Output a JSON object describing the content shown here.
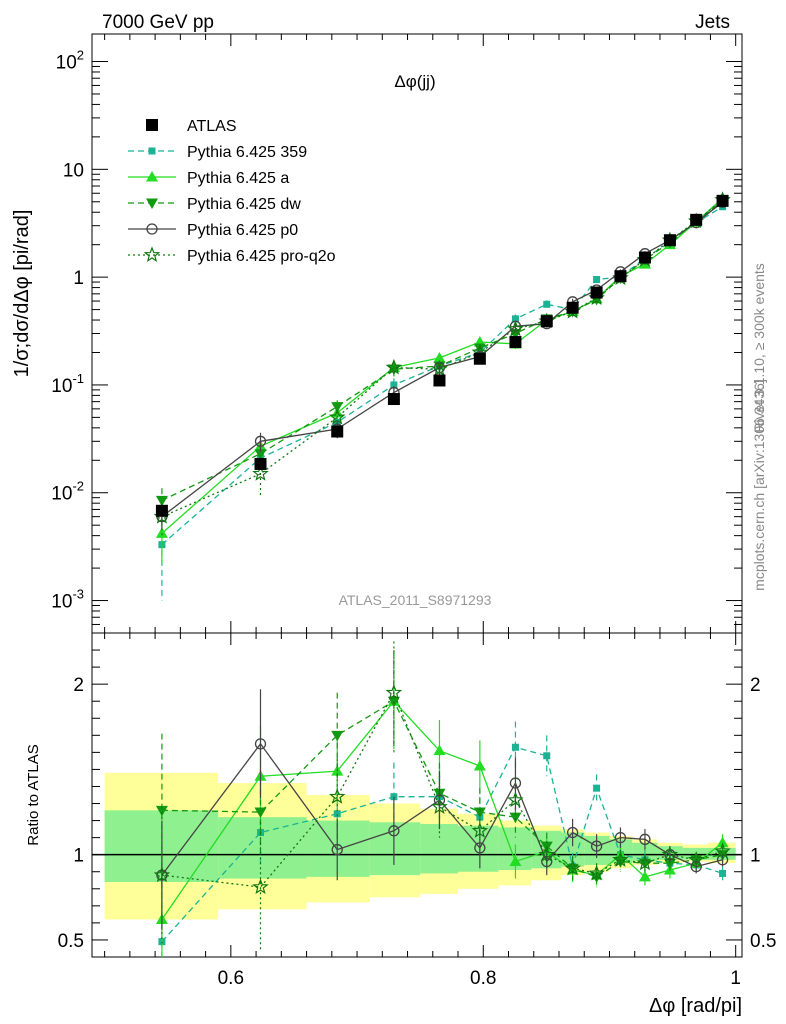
{
  "header": {
    "left": "7000 GeV pp",
    "right": "Jets"
  },
  "side_labels": {
    "rivet": "Rivet 3.1.10, ≥ 300k events",
    "mcplots": "mcplots.cern.ch [arXiv:1306.3436]"
  },
  "analysis_id": "ATLAS_2011_S8971293",
  "chart_data": [
    {
      "type": "line",
      "panel": "main",
      "title": "Δφ(jj)",
      "ylabel": "1/σ;dσ/dΔφ [pi/rad]",
      "xlim": [
        0.49,
        1.005
      ],
      "ylim": [
        0.0005,
        180
      ],
      "yscale": "log",
      "ytick_labels": [
        "10^-3",
        "10^-2",
        "10^-1",
        "1",
        "10",
        "10^2"
      ],
      "ytick_values": [
        0.001,
        0.01,
        0.1,
        1,
        10,
        100
      ],
      "legend_position": "top-left",
      "x": [
        0.5454,
        0.6235,
        0.6843,
        0.7292,
        0.7653,
        0.7973,
        0.8255,
        0.8503,
        0.8708,
        0.8898,
        0.9087,
        0.9281,
        0.9479,
        0.9687,
        0.9896
      ],
      "series": [
        {
          "name": "ATLAS",
          "style": "data",
          "color": "#000000",
          "marker": "square",
          "values": [
            0.0068,
            0.0185,
            0.037,
            0.074,
            0.11,
            0.175,
            0.25,
            0.39,
            0.52,
            0.72,
            1.02,
            1.52,
            2.2,
            3.4,
            5.1
          ],
          "errors": [
            0.0006,
            0.0015,
            0.003,
            0.005,
            0.008,
            0.012,
            0.015,
            0.03,
            0.035,
            0.045,
            0.06,
            0.09,
            0.12,
            0.18,
            0.3
          ]
        },
        {
          "name": "Pythia 6.425 359",
          "style": "dashed",
          "color": "#1ab394",
          "marker": "small-square",
          "values": [
            0.0033,
            0.021,
            0.045,
            0.1,
            0.15,
            0.2,
            0.41,
            0.56,
            0.5,
            0.95,
            1.0,
            1.5,
            2.1,
            3.2,
            4.5
          ],
          "errors": [
            0.0023,
            0.004,
            0.007,
            0.015,
            0.02,
            0.02,
            0.04,
            0.05,
            0.04,
            0.06,
            0.06,
            0.09,
            0.1,
            0.15,
            0.2
          ]
        },
        {
          "name": "Pythia 6.425 a",
          "style": "solid",
          "color": "#22dd22",
          "marker": "triangle-up",
          "values": [
            0.0042,
            0.027,
            0.055,
            0.145,
            0.178,
            0.25,
            0.24,
            0.4,
            0.48,
            0.63,
            1.02,
            1.32,
            2.0,
            3.25,
            5.4
          ],
          "errors": [
            0.002,
            0.005,
            0.008,
            0.02,
            0.02,
            0.025,
            0.025,
            0.03,
            0.035,
            0.04,
            0.06,
            0.08,
            0.1,
            0.16,
            0.25
          ]
        },
        {
          "name": "Pythia 6.425 dw",
          "style": "dashed",
          "color": "#119911",
          "marker": "triangle-down",
          "values": [
            0.0085,
            0.023,
            0.063,
            0.14,
            0.15,
            0.22,
            0.3,
            0.41,
            0.48,
            0.62,
            0.98,
            1.45,
            2.1,
            3.3,
            5.1
          ],
          "errors": [
            0.0025,
            0.005,
            0.009,
            0.02,
            0.02,
            0.02,
            0.03,
            0.03,
            0.035,
            0.04,
            0.06,
            0.08,
            0.1,
            0.16,
            0.25
          ]
        },
        {
          "name": "Pythia 6.425 p0",
          "style": "solid",
          "color": "#444444",
          "marker": "open-circle",
          "values": [
            0.006,
            0.03,
            0.039,
            0.085,
            0.145,
            0.183,
            0.35,
            0.37,
            0.59,
            0.76,
            1.12,
            1.65,
            2.2,
            3.2,
            4.95
          ],
          "errors": [
            0.0015,
            0.006,
            0.007,
            0.012,
            0.018,
            0.02,
            0.03,
            0.03,
            0.04,
            0.05,
            0.06,
            0.09,
            0.1,
            0.15,
            0.2
          ]
        },
        {
          "name": "Pythia 6.425 pro-q2o",
          "style": "dotted",
          "color": "#117711",
          "marker": "open-star",
          "values": [
            0.006,
            0.015,
            0.05,
            0.145,
            0.14,
            0.2,
            0.33,
            0.39,
            0.48,
            0.64,
            0.98,
            1.45,
            2.2,
            3.3,
            5.2
          ],
          "errors": [
            0.002,
            0.006,
            0.008,
            0.02,
            0.018,
            0.02,
            0.03,
            0.03,
            0.035,
            0.04,
            0.06,
            0.08,
            0.1,
            0.16,
            0.25
          ]
        }
      ]
    },
    {
      "type": "line",
      "panel": "ratio",
      "ylabel": "Ratio to ATLAS",
      "xlabel": "Δφ [rad/pi]",
      "xlim": [
        0.49,
        1.005
      ],
      "ylim": [
        0.4,
        2.3
      ],
      "ytick_labels": [
        "0.5",
        "1",
        "2"
      ],
      "ytick_values": [
        0.5,
        1,
        2
      ],
      "xtick_labels": [
        "0.6",
        "0.8",
        "1"
      ],
      "xtick_values": [
        0.6,
        0.8,
        1.0
      ],
      "reference_line": 1,
      "band_colors": {
        "inner": "#8ef08e",
        "outer": "#ffff99"
      },
      "band_bins": [
        {
          "x0": 0.5,
          "x1": 0.59,
          "inner": [
            0.84,
            1.26
          ],
          "outer": [
            0.62,
            1.48
          ]
        },
        {
          "x0": 0.59,
          "x1": 0.66,
          "inner": [
            0.86,
            1.22
          ],
          "outer": [
            0.68,
            1.42
          ]
        },
        {
          "x0": 0.66,
          "x1": 0.71,
          "inner": [
            0.87,
            1.2
          ],
          "outer": [
            0.72,
            1.35
          ]
        },
        {
          "x0": 0.71,
          "x1": 0.75,
          "inner": [
            0.88,
            1.19
          ],
          "outer": [
            0.75,
            1.3
          ]
        },
        {
          "x0": 0.75,
          "x1": 0.78,
          "inner": [
            0.89,
            1.18
          ],
          "outer": [
            0.77,
            1.27
          ]
        },
        {
          "x0": 0.78,
          "x1": 0.812,
          "inner": [
            0.9,
            1.17
          ],
          "outer": [
            0.8,
            1.24
          ]
        },
        {
          "x0": 0.812,
          "x1": 0.838,
          "inner": [
            0.91,
            1.16
          ],
          "outer": [
            0.82,
            1.2
          ]
        },
        {
          "x0": 0.838,
          "x1": 0.862,
          "inner": [
            0.92,
            1.14
          ],
          "outer": [
            0.85,
            1.17
          ]
        },
        {
          "x0": 0.862,
          "x1": 0.88,
          "inner": [
            0.93,
            1.13
          ],
          "outer": [
            0.88,
            1.15
          ]
        },
        {
          "x0": 0.88,
          "x1": 0.9,
          "inner": [
            0.94,
            1.11
          ],
          "outer": [
            0.9,
            1.13
          ]
        },
        {
          "x0": 0.9,
          "x1": 0.918,
          "inner": [
            0.95,
            1.09
          ],
          "outer": [
            0.92,
            1.11
          ]
        },
        {
          "x0": 0.918,
          "x1": 0.938,
          "inner": [
            0.96,
            1.07
          ],
          "outer": [
            0.94,
            1.09
          ]
        },
        {
          "x0": 0.938,
          "x1": 0.958,
          "inner": [
            0.97,
            1.05
          ],
          "outer": [
            0.95,
            1.07
          ]
        },
        {
          "x0": 0.958,
          "x1": 0.978,
          "inner": [
            0.97,
            1.04
          ],
          "outer": [
            0.96,
            1.06
          ]
        },
        {
          "x0": 0.978,
          "x1": 1.0,
          "inner": [
            0.97,
            1.04
          ],
          "outer": [
            0.95,
            1.07
          ]
        }
      ],
      "series": [
        {
          "name": "Pythia 6.425 359",
          "values": [
            0.49,
            1.13,
            1.24,
            1.34,
            1.34,
            1.22,
            1.63,
            1.58,
            0.93,
            1.39,
            1.0,
            0.97,
            0.95,
            0.94,
            0.89
          ],
          "errors": [
            0.47,
            0.2,
            0.18,
            0.2,
            0.18,
            0.12,
            0.15,
            0.12,
            0.08,
            0.08,
            0.06,
            0.06,
            0.05,
            0.04,
            0.04
          ]
        },
        {
          "name": "Pythia 6.425 a",
          "values": [
            0.62,
            1.46,
            1.49,
            1.9,
            1.61,
            1.52,
            0.96,
            1.02,
            0.91,
            0.88,
            1.0,
            0.87,
            0.91,
            0.95,
            1.07
          ],
          "errors": [
            0.35,
            0.3,
            0.2,
            0.28,
            0.18,
            0.15,
            0.1,
            0.08,
            0.07,
            0.06,
            0.06,
            0.05,
            0.05,
            0.04,
            0.05
          ]
        },
        {
          "name": "Pythia 6.425 dw",
          "values": [
            1.26,
            1.25,
            1.7,
            1.9,
            1.36,
            1.25,
            1.22,
            1.05,
            0.92,
            0.87,
            0.96,
            0.95,
            0.95,
            0.97,
            1.0
          ],
          "errors": [
            0.45,
            0.25,
            0.25,
            0.3,
            0.18,
            0.14,
            0.12,
            0.08,
            0.07,
            0.06,
            0.06,
            0.05,
            0.05,
            0.04,
            0.05
          ]
        },
        {
          "name": "Pythia 6.425 p0",
          "values": [
            0.88,
            1.65,
            1.03,
            1.14,
            1.32,
            1.04,
            1.42,
            0.96,
            1.13,
            1.05,
            1.1,
            1.09,
            1.0,
            0.93,
            0.97
          ],
          "errors": [
            0.32,
            0.32,
            0.18,
            0.2,
            0.17,
            0.12,
            0.15,
            0.08,
            0.08,
            0.07,
            0.06,
            0.06,
            0.05,
            0.04,
            0.04
          ]
        },
        {
          "name": "Pythia 6.425 pro-q2o",
          "values": [
            0.88,
            0.81,
            1.34,
            1.95,
            1.28,
            1.14,
            1.32,
            1.0,
            0.92,
            0.89,
            0.97,
            0.95,
            1.0,
            0.97,
            1.02
          ],
          "errors": [
            0.4,
            0.38,
            0.22,
            0.3,
            0.18,
            0.13,
            0.13,
            0.08,
            0.07,
            0.06,
            0.06,
            0.05,
            0.05,
            0.04,
            0.05
          ]
        }
      ]
    }
  ]
}
